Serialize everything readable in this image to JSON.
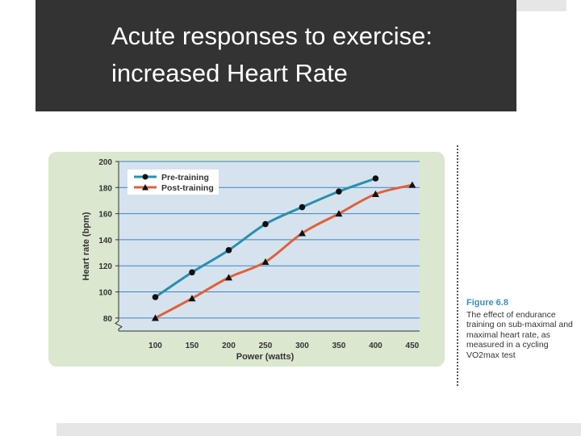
{
  "slide": {
    "title_line1": "Acute responses to exercise:",
    "title_line2": "increased Heart Rate"
  },
  "figure": {
    "label": "Figure 6.8",
    "caption": "The effect of endurance training on sub-maximal and maximal heart rate, as measured in a cycling VO2max test"
  },
  "colors": {
    "pre": "#2a8fae",
    "post": "#e0603a",
    "plot_bg": "#d6e3ee",
    "panel_bg": "#dbe7cf",
    "grid": "#3b84c4"
  },
  "chart_data": {
    "type": "line",
    "xlabel": "Power (watts)",
    "ylabel": "Heart rate (bpm)",
    "x_ticks": [
      100,
      150,
      200,
      250,
      300,
      350,
      400,
      450
    ],
    "y_ticks": [
      80,
      100,
      120,
      140,
      160,
      180,
      200
    ],
    "xlim": [
      50,
      460
    ],
    "ylim": [
      70,
      200
    ],
    "grid": true,
    "legend_position": "top-left",
    "series": [
      {
        "name": "Pre-training",
        "marker": "circle",
        "x": [
          100,
          150,
          200,
          250,
          300,
          350,
          400
        ],
        "y": [
          96,
          115,
          132,
          152,
          165,
          177,
          187
        ]
      },
      {
        "name": "Post-training",
        "marker": "triangle",
        "x": [
          100,
          150,
          200,
          250,
          300,
          350,
          400,
          450
        ],
        "y": [
          80,
          95,
          111,
          123,
          145,
          160,
          175,
          182
        ]
      }
    ]
  }
}
